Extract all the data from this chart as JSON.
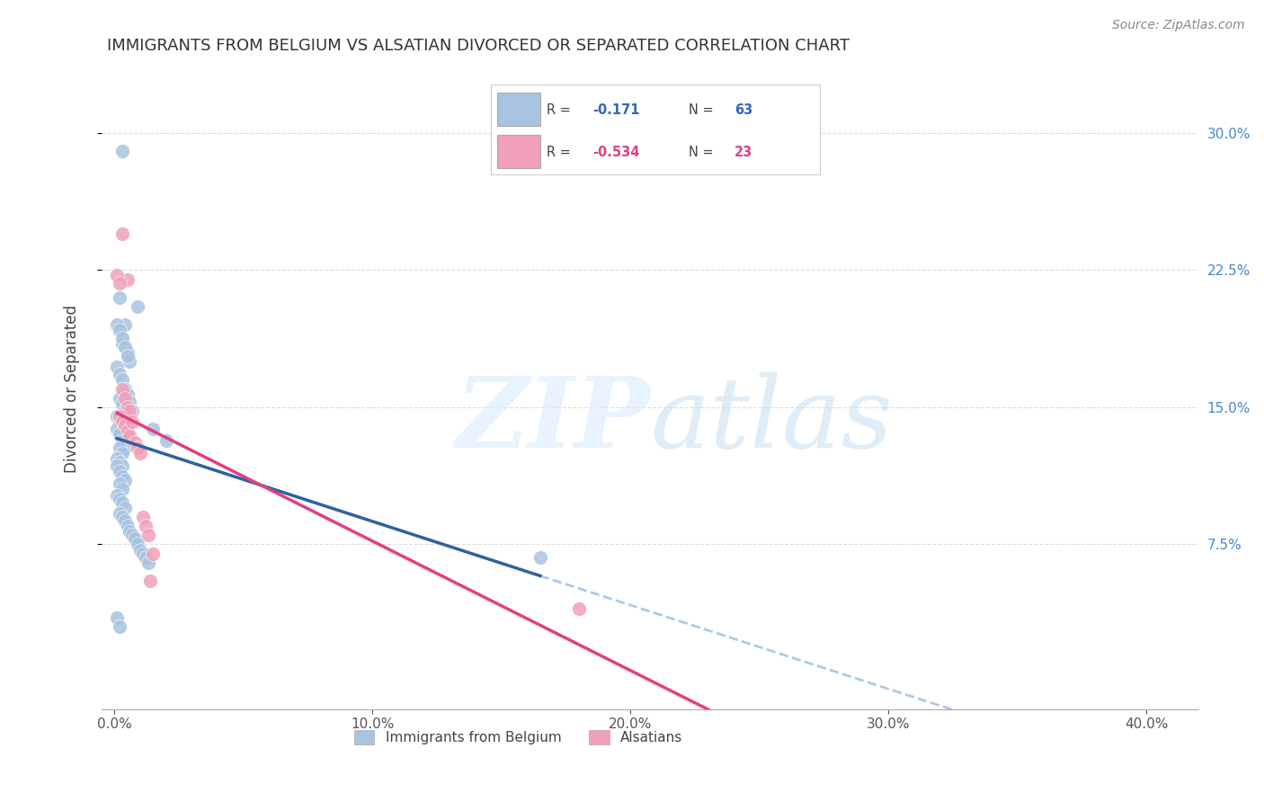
{
  "title": "IMMIGRANTS FROM BELGIUM VS ALSATIAN DIVORCED OR SEPARATED CORRELATION CHART",
  "source": "Source: ZipAtlas.com",
  "ylabel": "Divorced or Separated",
  "xlim": [
    -0.005,
    0.42
  ],
  "ylim": [
    -0.015,
    0.335
  ],
  "blue_R": -0.171,
  "blue_N": 63,
  "pink_R": -0.534,
  "pink_N": 23,
  "blue_color": "#a8c4e0",
  "pink_color": "#f0a0b8",
  "blue_line_color": "#3060a0",
  "pink_line_color": "#e04080",
  "dashed_line_color": "#b0c8e8",
  "legend_label_blue": "Immigrants from Belgium",
  "legend_label_pink": "Alsatians",
  "blue_points_x": [
    0.003,
    0.009,
    0.002,
    0.004,
    0.003,
    0.005,
    0.006,
    0.001,
    0.002,
    0.003,
    0.004,
    0.005,
    0.001,
    0.002,
    0.003,
    0.004,
    0.005,
    0.006,
    0.007,
    0.002,
    0.003,
    0.004,
    0.001,
    0.002,
    0.003,
    0.004,
    0.005,
    0.001,
    0.002,
    0.003,
    0.004,
    0.002,
    0.003,
    0.001,
    0.002,
    0.003,
    0.001,
    0.002,
    0.003,
    0.004,
    0.002,
    0.003,
    0.001,
    0.002,
    0.003,
    0.004,
    0.002,
    0.003,
    0.004,
    0.005,
    0.006,
    0.007,
    0.008,
    0.009,
    0.01,
    0.011,
    0.012,
    0.013,
    0.165,
    0.02,
    0.015,
    0.001,
    0.002
  ],
  "blue_points_y": [
    0.29,
    0.205,
    0.21,
    0.195,
    0.185,
    0.18,
    0.175,
    0.195,
    0.192,
    0.188,
    0.183,
    0.178,
    0.172,
    0.168,
    0.165,
    0.16,
    0.157,
    0.153,
    0.148,
    0.155,
    0.152,
    0.148,
    0.145,
    0.142,
    0.138,
    0.135,
    0.132,
    0.138,
    0.135,
    0.132,
    0.128,
    0.128,
    0.125,
    0.122,
    0.12,
    0.118,
    0.118,
    0.115,
    0.112,
    0.11,
    0.108,
    0.105,
    0.102,
    0.1,
    0.098,
    0.095,
    0.092,
    0.09,
    0.088,
    0.085,
    0.082,
    0.08,
    0.078,
    0.075,
    0.072,
    0.07,
    0.068,
    0.065,
    0.068,
    0.132,
    0.138,
    0.035,
    0.03
  ],
  "pink_points_x": [
    0.003,
    0.005,
    0.001,
    0.002,
    0.003,
    0.004,
    0.005,
    0.006,
    0.002,
    0.003,
    0.004,
    0.005,
    0.006,
    0.007,
    0.008,
    0.009,
    0.01,
    0.011,
    0.012,
    0.18,
    0.013,
    0.014,
    0.015
  ],
  "pink_points_y": [
    0.245,
    0.22,
    0.222,
    0.218,
    0.16,
    0.155,
    0.15,
    0.148,
    0.145,
    0.142,
    0.14,
    0.137,
    0.134,
    0.142,
    0.131,
    0.128,
    0.125,
    0.09,
    0.085,
    0.04,
    0.08,
    0.055,
    0.07
  ],
  "background_color": "#ffffff",
  "grid_color": "#dddddd"
}
